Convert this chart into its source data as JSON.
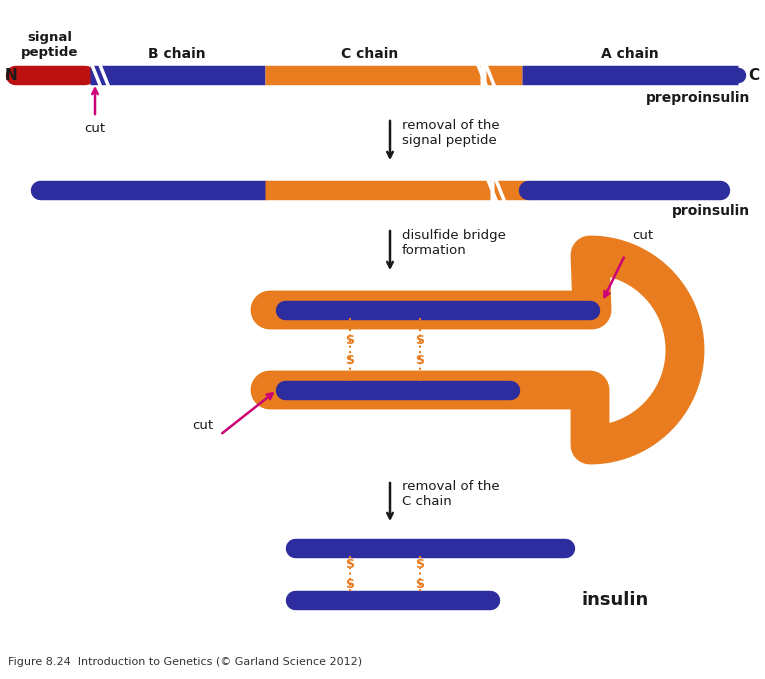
{
  "blue": "#2d2d9f",
  "orange": "#e87c1e",
  "red": "#bb1111",
  "magenta": "#cc0077",
  "black": "#1a1a1a",
  "bg": "#ffffff",
  "title_label": "preproinsulin",
  "proinsulin_label": "proinsulin",
  "insulin_label": "insulin",
  "fig_caption": "Figure 8.24  Introduction to Genetics (© Garland Science 2012)"
}
